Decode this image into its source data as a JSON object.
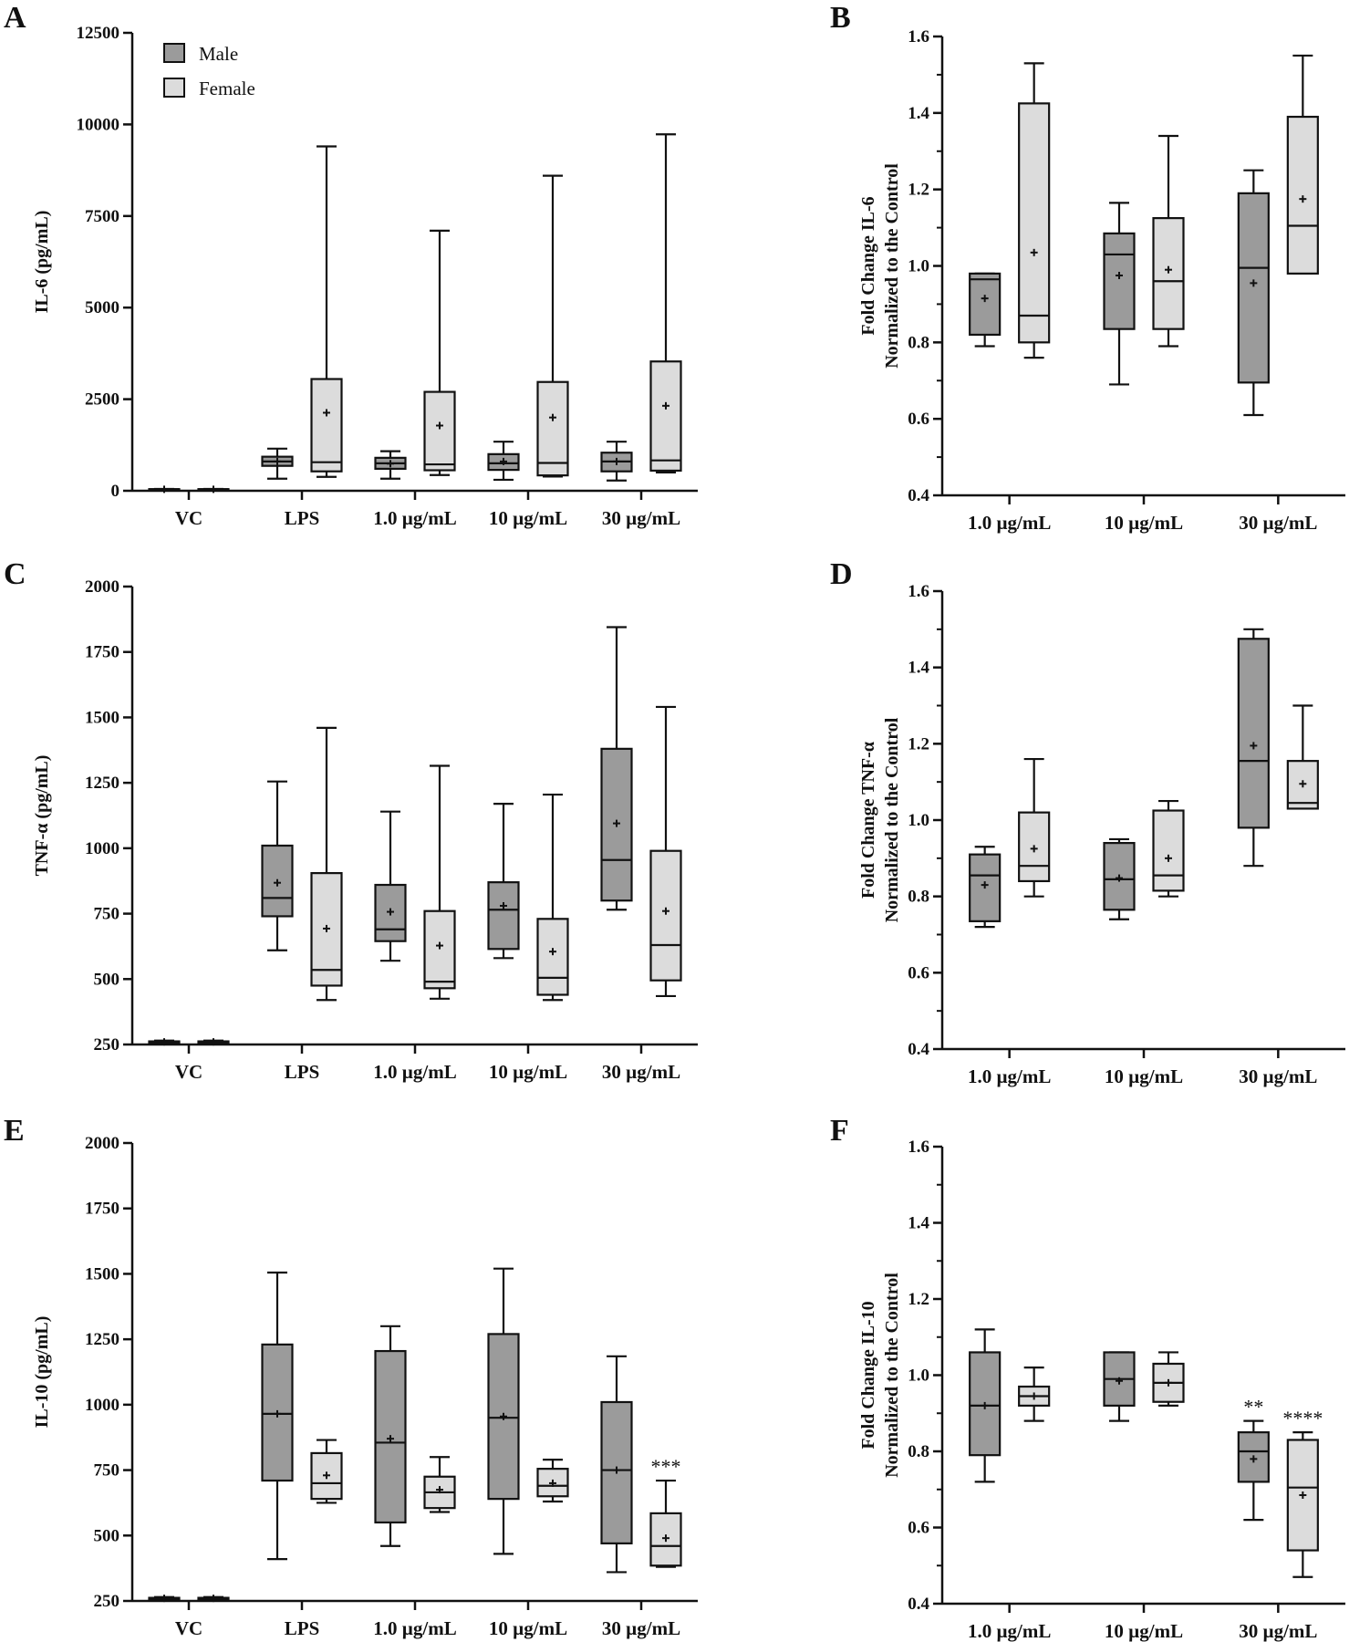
{
  "legend": {
    "male_label": "Male",
    "female_label": "Female"
  },
  "colors": {
    "male": "#9b9b9b",
    "female": "#dcdcdc",
    "stroke": "#111111",
    "background": "#ffffff"
  },
  "chart_data": [
    {
      "id": "A",
      "panel_label": "A",
      "type": "box",
      "ylabel": "IL-6 (pg/mL)",
      "ylim": [
        0,
        12500
      ],
      "yticks": [
        0,
        2500,
        5000,
        7500,
        10000,
        12500
      ],
      "ytick_labels": [
        "0",
        "2500",
        "5000",
        "7500",
        "10000",
        "12500"
      ],
      "minor_ticks": 0,
      "grid": false,
      "categories": [
        "VC",
        "LPS",
        "1.0 µg/mL",
        "10 µg/mL",
        "30 µg/mL"
      ],
      "series": [
        {
          "name": "Male",
          "boxes": [
            {
              "min": 30,
              "q1": 35,
              "median": 40,
              "q3": 45,
              "max": 50,
              "mean": 40
            },
            {
              "min": 330,
              "q1": 680,
              "median": 800,
              "q3": 930,
              "max": 1150,
              "mean": 800
            },
            {
              "min": 330,
              "q1": 600,
              "median": 750,
              "q3": 900,
              "max": 1080,
              "mean": 740
            },
            {
              "min": 300,
              "q1": 570,
              "median": 750,
              "q3": 1000,
              "max": 1340,
              "mean": 800
            },
            {
              "min": 280,
              "q1": 530,
              "median": 800,
              "q3": 1040,
              "max": 1340,
              "mean": 800
            }
          ]
        },
        {
          "name": "Female",
          "boxes": [
            {
              "min": 30,
              "q1": 35,
              "median": 40,
              "q3": 45,
              "max": 50,
              "mean": 40
            },
            {
              "min": 380,
              "q1": 530,
              "median": 780,
              "q3": 3050,
              "max": 9400,
              "mean": 2130
            },
            {
              "min": 430,
              "q1": 560,
              "median": 720,
              "q3": 2700,
              "max": 7100,
              "mean": 1780
            },
            {
              "min": 390,
              "q1": 420,
              "median": 760,
              "q3": 2970,
              "max": 8600,
              "mean": 2000
            },
            {
              "min": 500,
              "q1": 550,
              "median": 830,
              "q3": 3530,
              "max": 9730,
              "mean": 2320
            }
          ]
        }
      ],
      "annotations": []
    },
    {
      "id": "B",
      "panel_label": "B",
      "type": "box",
      "ylabel": [
        "Fold Change IL-6",
        "Normalized to the Control"
      ],
      "ylim": [
        0.4,
        1.6
      ],
      "yticks": [
        0.4,
        0.6,
        0.8,
        1.0,
        1.2,
        1.4,
        1.6
      ],
      "ytick_labels": [
        "0.4",
        "0.6",
        "0.8",
        "1.0",
        "1.2",
        "1.4",
        "1.6"
      ],
      "minor_ticks": 1,
      "grid": false,
      "categories": [
        "1.0 µg/mL",
        "10 µg/mL",
        "30 µg/mL"
      ],
      "series": [
        {
          "name": "Male",
          "boxes": [
            {
              "min": 0.79,
              "q1": 0.82,
              "median": 0.965,
              "q3": 0.98,
              "max": 0.98,
              "mean": 0.915
            },
            {
              "min": 0.69,
              "q1": 0.835,
              "median": 1.03,
              "q3": 1.085,
              "max": 1.165,
              "mean": 0.975
            },
            {
              "min": 0.61,
              "q1": 0.695,
              "median": 0.995,
              "q3": 1.19,
              "max": 1.25,
              "mean": 0.955
            }
          ]
        },
        {
          "name": "Female",
          "boxes": [
            {
              "min": 0.76,
              "q1": 0.8,
              "median": 0.87,
              "q3": 1.425,
              "max": 1.53,
              "mean": 1.035
            },
            {
              "min": 0.79,
              "q1": 0.835,
              "median": 0.96,
              "q3": 1.125,
              "max": 1.34,
              "mean": 0.99
            },
            {
              "min": 0.98,
              "q1": 0.98,
              "median": 1.105,
              "q3": 1.39,
              "max": 1.55,
              "mean": 1.175
            }
          ]
        }
      ],
      "annotations": []
    },
    {
      "id": "C",
      "panel_label": "C",
      "type": "box",
      "ylabel": "TNF-α (pg/mL)",
      "ylim": [
        250,
        2000
      ],
      "yticks": [
        250,
        500,
        750,
        1000,
        1250,
        1500,
        1750,
        2000
      ],
      "ytick_labels": [
        "250",
        "500",
        "750",
        "1000",
        "1250",
        "1500",
        "1750",
        "2000"
      ],
      "minor_ticks": 0,
      "grid": false,
      "categories": [
        "VC",
        "LPS",
        "1.0 µg/mL",
        "10 µg/mL",
        "30 µg/mL"
      ],
      "series": [
        {
          "name": "Male",
          "boxes": [
            {
              "min": 255,
              "q1": 258,
              "median": 260,
              "q3": 262,
              "max": 265,
              "mean": 260
            },
            {
              "min": 610,
              "q1": 740,
              "median": 810,
              "q3": 1010,
              "max": 1255,
              "mean": 868
            },
            {
              "min": 570,
              "q1": 645,
              "median": 690,
              "q3": 860,
              "max": 1140,
              "mean": 757
            },
            {
              "min": 580,
              "q1": 615,
              "median": 765,
              "q3": 870,
              "max": 1170,
              "mean": 780
            },
            {
              "min": 765,
              "q1": 800,
              "median": 955,
              "q3": 1380,
              "max": 1845,
              "mean": 1095
            }
          ]
        },
        {
          "name": "Female",
          "boxes": [
            {
              "min": 255,
              "q1": 258,
              "median": 260,
              "q3": 262,
              "max": 265,
              "mean": 260
            },
            {
              "min": 420,
              "q1": 475,
              "median": 535,
              "q3": 905,
              "max": 1460,
              "mean": 693
            },
            {
              "min": 425,
              "q1": 465,
              "median": 490,
              "q3": 760,
              "max": 1315,
              "mean": 628
            },
            {
              "min": 420,
              "q1": 440,
              "median": 505,
              "q3": 730,
              "max": 1205,
              "mean": 605
            },
            {
              "min": 435,
              "q1": 495,
              "median": 630,
              "q3": 990,
              "max": 1540,
              "mean": 760
            }
          ]
        }
      ],
      "annotations": []
    },
    {
      "id": "D",
      "panel_label": "D",
      "type": "box",
      "ylabel": [
        "Fold Change TNF-α",
        "Normalized to the Control"
      ],
      "ylim": [
        0.4,
        1.6
      ],
      "yticks": [
        0.4,
        0.6,
        0.8,
        1.0,
        1.2,
        1.4,
        1.6
      ],
      "ytick_labels": [
        "0.4",
        "0.6",
        "0.8",
        "1.0",
        "1.2",
        "1.4",
        "1.6"
      ],
      "minor_ticks": 1,
      "grid": false,
      "categories": [
        "1.0 µg/mL",
        "10 µg/mL",
        "30 µg/mL"
      ],
      "series": [
        {
          "name": "Male",
          "boxes": [
            {
              "min": 0.72,
              "q1": 0.735,
              "median": 0.855,
              "q3": 0.91,
              "max": 0.93,
              "mean": 0.83
            },
            {
              "min": 0.74,
              "q1": 0.765,
              "median": 0.845,
              "q3": 0.94,
              "max": 0.95,
              "mean": 0.848
            },
            {
              "min": 0.88,
              "q1": 0.98,
              "median": 1.155,
              "q3": 1.475,
              "max": 1.5,
              "mean": 1.195
            }
          ]
        },
        {
          "name": "Female",
          "boxes": [
            {
              "min": 0.8,
              "q1": 0.84,
              "median": 0.88,
              "q3": 1.02,
              "max": 1.16,
              "mean": 0.925
            },
            {
              "min": 0.8,
              "q1": 0.815,
              "median": 0.855,
              "q3": 1.025,
              "max": 1.05,
              "mean": 0.9
            },
            {
              "min": 1.03,
              "q1": 1.03,
              "median": 1.045,
              "q3": 1.155,
              "max": 1.3,
              "mean": 1.095
            }
          ]
        }
      ],
      "annotations": []
    },
    {
      "id": "E",
      "panel_label": "E",
      "type": "box",
      "ylabel": "IL-10 (pg/mL)",
      "ylim": [
        250,
        2000
      ],
      "yticks": [
        250,
        500,
        750,
        1000,
        1250,
        1500,
        1750,
        2000
      ],
      "ytick_labels": [
        "250",
        "500",
        "750",
        "1000",
        "1250",
        "1500",
        "1750",
        "2000"
      ],
      "minor_ticks": 0,
      "grid": false,
      "categories": [
        "VC",
        "LPS",
        "1.0 µg/mL",
        "10 µg/mL",
        "30 µg/mL"
      ],
      "series": [
        {
          "name": "Male",
          "boxes": [
            {
              "min": 255,
              "q1": 258,
              "median": 260,
              "q3": 262,
              "max": 265,
              "mean": 260
            },
            {
              "min": 410,
              "q1": 710,
              "median": 965,
              "q3": 1230,
              "max": 1505,
              "mean": 965
            },
            {
              "min": 460,
              "q1": 550,
              "median": 855,
              "q3": 1205,
              "max": 1300,
              "mean": 870
            },
            {
              "min": 430,
              "q1": 640,
              "median": 950,
              "q3": 1270,
              "max": 1520,
              "mean": 955
            },
            {
              "min": 360,
              "q1": 470,
              "median": 750,
              "q3": 1010,
              "max": 1185,
              "mean": 750
            }
          ]
        },
        {
          "name": "Female",
          "boxes": [
            {
              "min": 255,
              "q1": 258,
              "median": 260,
              "q3": 262,
              "max": 265,
              "mean": 260
            },
            {
              "min": 625,
              "q1": 640,
              "median": 700,
              "q3": 815,
              "max": 865,
              "mean": 730
            },
            {
              "min": 590,
              "q1": 605,
              "median": 665,
              "q3": 725,
              "max": 800,
              "mean": 675
            },
            {
              "min": 630,
              "q1": 650,
              "median": 690,
              "q3": 755,
              "max": 790,
              "mean": 700
            },
            {
              "min": 380,
              "q1": 385,
              "median": 460,
              "q3": 585,
              "max": 710,
              "mean": 490
            }
          ]
        }
      ],
      "annotations": [
        {
          "series": "Female",
          "category": "30 µg/mL",
          "text": "***"
        }
      ]
    },
    {
      "id": "F",
      "panel_label": "F",
      "type": "box",
      "ylabel": [
        "Fold Change IL-10",
        "Normalized to the Control"
      ],
      "ylim": [
        0.4,
        1.6
      ],
      "yticks": [
        0.4,
        0.6,
        0.8,
        1.0,
        1.2,
        1.4,
        1.6
      ],
      "ytick_labels": [
        "0.4",
        "0.6",
        "0.8",
        "1.0",
        "1.2",
        "1.4",
        "1.6"
      ],
      "minor_ticks": 1,
      "grid": false,
      "categories": [
        "1.0 µg/mL",
        "10 µg/mL",
        "30 µg/mL"
      ],
      "series": [
        {
          "name": "Male",
          "boxes": [
            {
              "min": 0.72,
              "q1": 0.79,
              "median": 0.92,
              "q3": 1.06,
              "max": 1.12,
              "mean": 0.92
            },
            {
              "min": 0.88,
              "q1": 0.92,
              "median": 0.99,
              "q3": 1.06,
              "max": 1.06,
              "mean": 0.985
            },
            {
              "min": 0.62,
              "q1": 0.72,
              "median": 0.8,
              "q3": 0.85,
              "max": 0.88,
              "mean": 0.78
            }
          ]
        },
        {
          "name": "Female",
          "boxes": [
            {
              "min": 0.88,
              "q1": 0.92,
              "median": 0.945,
              "q3": 0.97,
              "max": 1.02,
              "mean": 0.945
            },
            {
              "min": 0.92,
              "q1": 0.93,
              "median": 0.98,
              "q3": 1.03,
              "max": 1.06,
              "mean": 0.98
            },
            {
              "min": 0.47,
              "q1": 0.54,
              "median": 0.705,
              "q3": 0.83,
              "max": 0.85,
              "mean": 0.685
            }
          ]
        }
      ],
      "annotations": [
        {
          "series": "Male",
          "category": "30 µg/mL",
          "text": "**"
        },
        {
          "series": "Female",
          "category": "30 µg/mL",
          "text": "****"
        }
      ]
    }
  ]
}
